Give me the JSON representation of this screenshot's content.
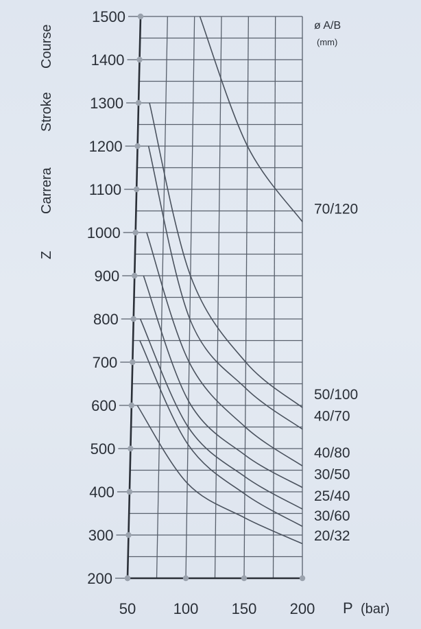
{
  "chart_data": {
    "type": "line",
    "xlabel_main": "P",
    "xlabel_unit": "(bar)",
    "ylabel_parts": [
      "Z",
      "Carrera",
      "Stroke",
      "Course"
    ],
    "legend_title": "ø A/B",
    "legend_unit": "(mm)",
    "xlim": [
      50,
      200
    ],
    "ylim": [
      200,
      1500
    ],
    "x_ticks": [
      50,
      100,
      150,
      200
    ],
    "y_ticks": [
      200,
      300,
      400,
      500,
      600,
      700,
      800,
      900,
      1000,
      1100,
      1200,
      1300,
      1400,
      1500
    ],
    "grid": true,
    "series": [
      {
        "name": "70/120",
        "x": [
          105,
          150,
          200
        ],
        "y": [
          1500,
          1200,
          1025
        ]
      },
      {
        "name": "50/100",
        "x": [
          60,
          100,
          150,
          200
        ],
        "y": [
          1300,
          900,
          700,
          595
        ]
      },
      {
        "name": "40/70",
        "x": [
          60,
          100,
          150,
          200
        ],
        "y": [
          1200,
          800,
          640,
          545
        ]
      },
      {
        "name": "40/80",
        "x": [
          60,
          100,
          150,
          200
        ],
        "y": [
          1000,
          700,
          550,
          460
        ]
      },
      {
        "name": "30/50",
        "x": [
          58,
          100,
          150,
          200
        ],
        "y": [
          900,
          610,
          485,
          410
        ]
      },
      {
        "name": "25/40",
        "x": [
          56,
          100,
          150,
          200
        ],
        "y": [
          800,
          550,
          435,
          360
        ]
      },
      {
        "name": "30/60",
        "x": [
          56,
          100,
          150,
          200
        ],
        "y": [
          750,
          510,
          395,
          320
        ]
      },
      {
        "name": "20/32",
        "x": [
          55,
          100,
          150,
          200
        ],
        "y": [
          600,
          420,
          340,
          280
        ]
      }
    ]
  }
}
